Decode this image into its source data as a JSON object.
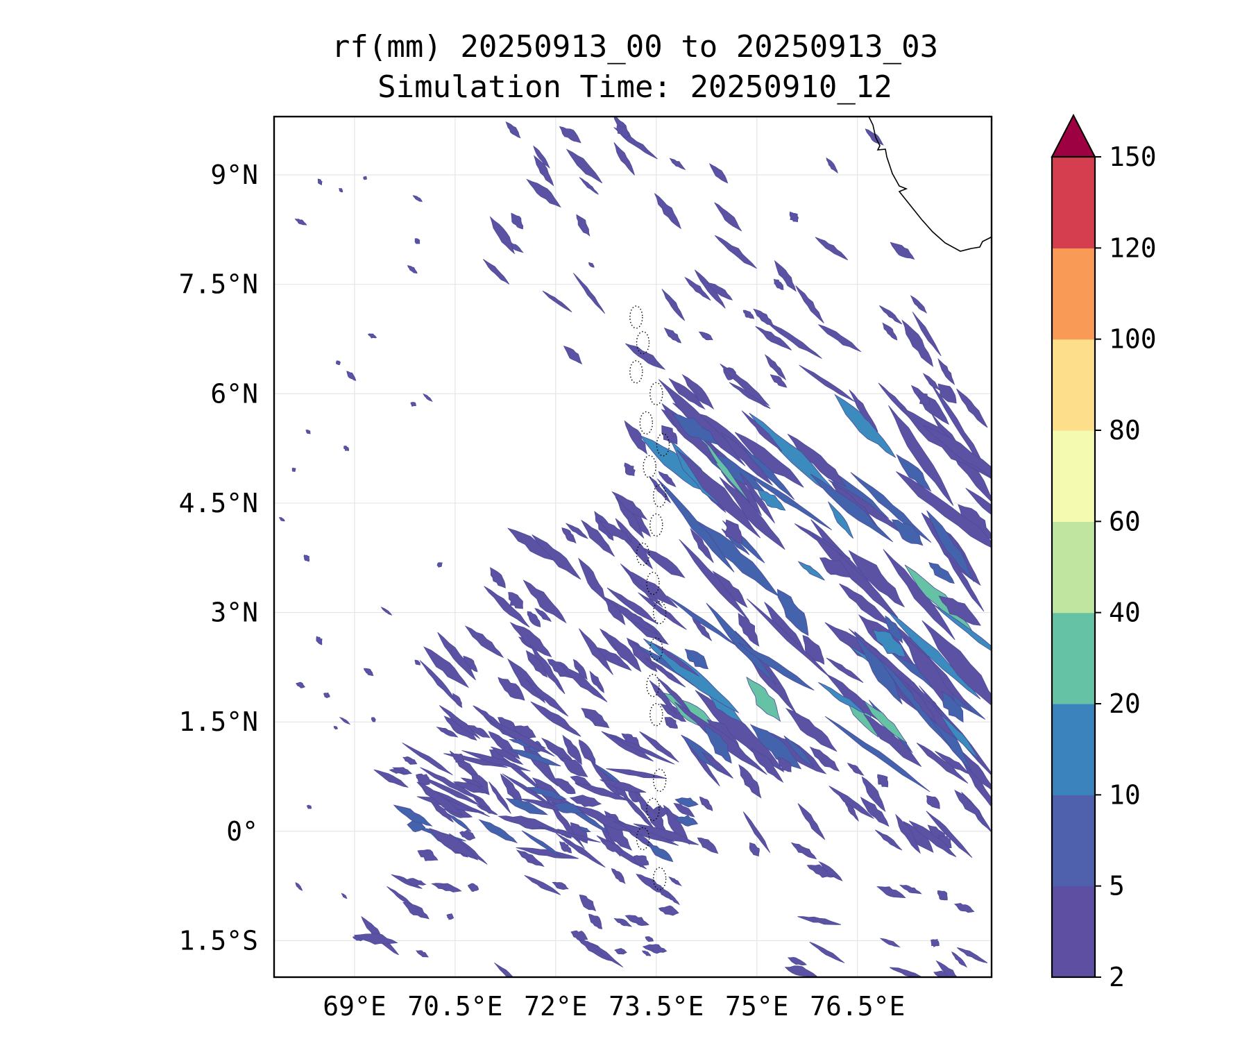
{
  "title": {
    "line1": "rf(mm) 20250913_00 to 20250913_03",
    "line2": "Simulation Time: 20250910_12"
  },
  "map": {
    "lon_range": [
      67.8,
      78.5
    ],
    "lat_range": [
      -2.0,
      9.8
    ],
    "x_ticks": [
      {
        "value": 69.0,
        "label": "69°E"
      },
      {
        "value": 70.5,
        "label": "70.5°E"
      },
      {
        "value": 72.0,
        "label": "72°E"
      },
      {
        "value": 73.5,
        "label": "73.5°E"
      },
      {
        "value": 75.0,
        "label": "75°E"
      },
      {
        "value": 76.5,
        "label": "76.5°E"
      }
    ],
    "y_ticks": [
      {
        "value": 9.0,
        "label": "9°N"
      },
      {
        "value": 7.5,
        "label": "7.5°N"
      },
      {
        "value": 6.0,
        "label": "6°N"
      },
      {
        "value": 4.5,
        "label": "4.5°N"
      },
      {
        "value": 3.0,
        "label": "3°N"
      },
      {
        "value": 1.5,
        "label": "1.5°N"
      },
      {
        "value": 0.0,
        "label": "0°"
      },
      {
        "value": -1.5,
        "label": "1.5°S"
      }
    ],
    "gridlines": true,
    "coastline": "southern tip of India (top-right), Maldives atolls (dotted, near 73.5°E)"
  },
  "colorbar": {
    "levels": [
      "2",
      "5",
      "10",
      "20",
      "40",
      "60",
      "80",
      "100",
      "120",
      "150"
    ],
    "colors": [
      "#5e4fa2",
      "#4f60ad",
      "#3a83bc",
      "#66c2a5",
      "#bfe5a0",
      "#f4fbb0",
      "#fddf8b",
      "#f99b57",
      "#d53e4f"
    ],
    "extend_color": "#9e0142",
    "extend": "max"
  },
  "colors": {
    "rain_low": "#5b52a3",
    "rain_mid": "#4463ad",
    "rain_high": "#3c8bbf",
    "rain_peak": "#66c2a5"
  }
}
